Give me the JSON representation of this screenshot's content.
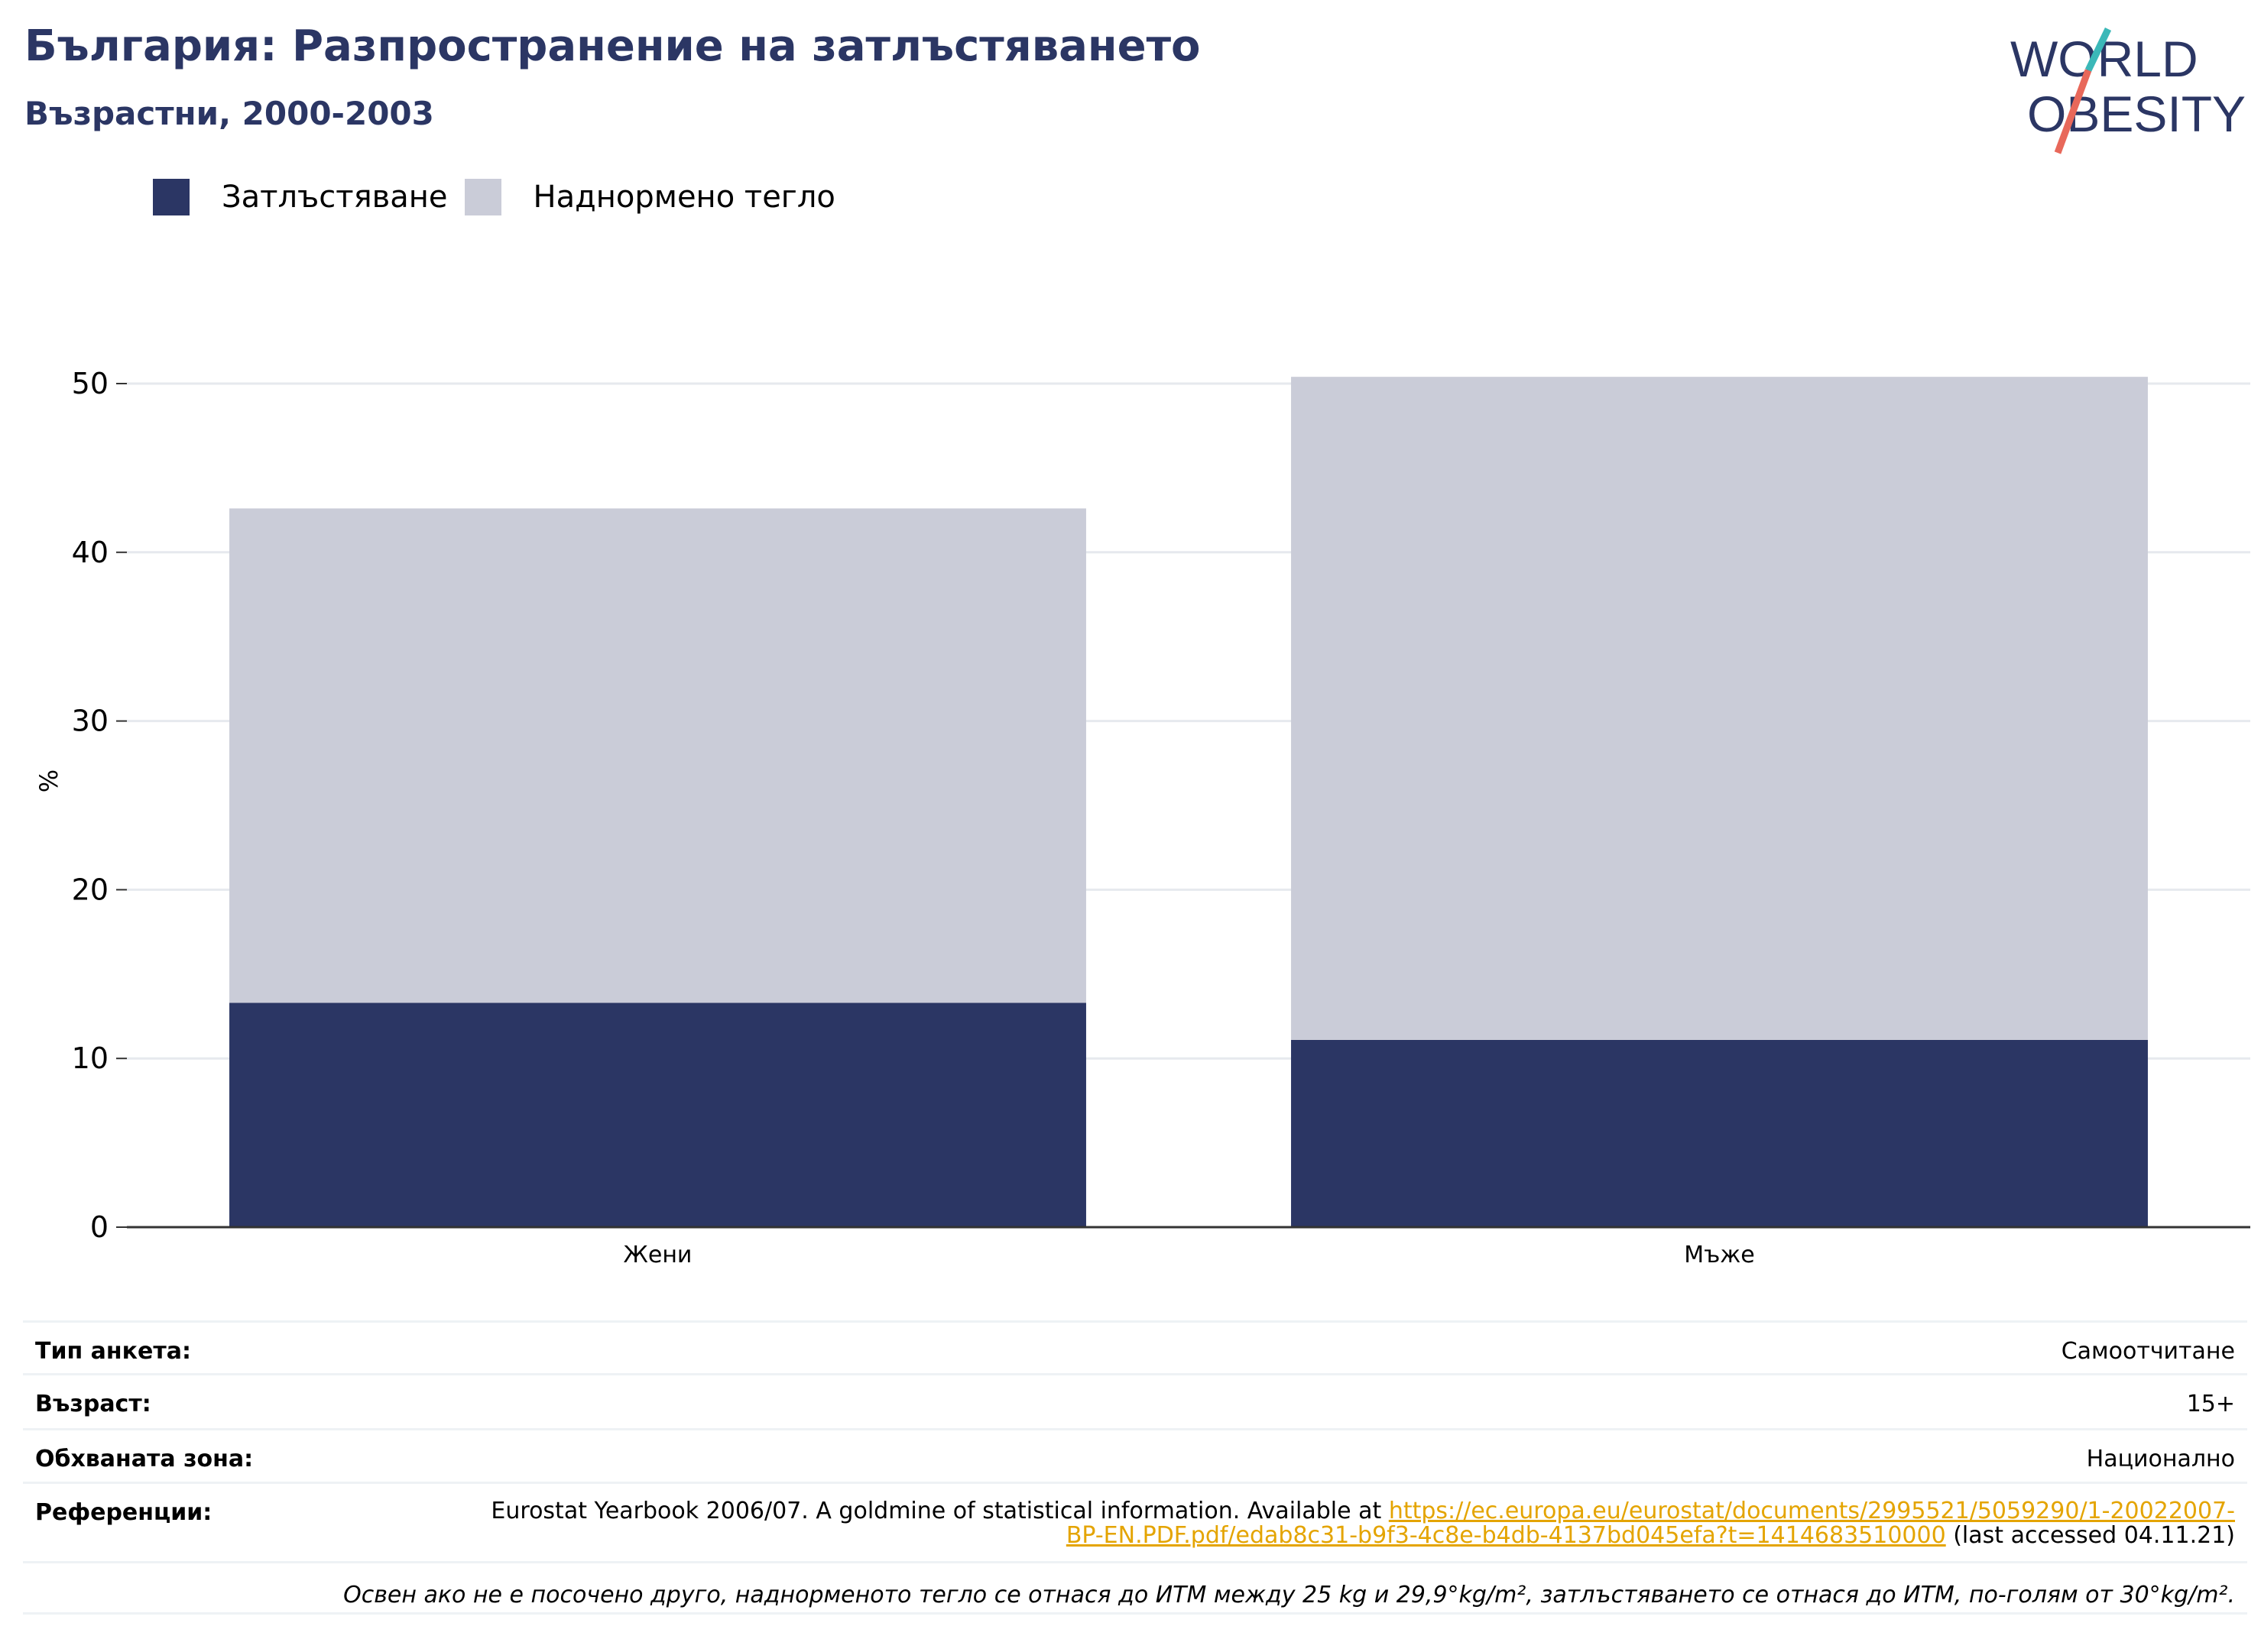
{
  "header": {
    "title": "България: Разпространение на затлъстяването",
    "subtitle": "Възрастни, 2000-2003"
  },
  "logo": {
    "line1": "WORLD",
    "line2": "OBESITY"
  },
  "colors": {
    "obesity": "#2b3664",
    "overweight": "#caccd8",
    "title": "#2b3664",
    "link": "#e4a400",
    "logo_red": "#e8685a",
    "logo_teal": "#3bb8b8"
  },
  "chart_data": {
    "type": "bar",
    "stacked": true,
    "categories": [
      "Жени",
      "Мъже"
    ],
    "series": [
      {
        "name": "Затлъстяване",
        "values": [
          13.3,
          11.1
        ]
      },
      {
        "name": "Наднормено тегло",
        "values": [
          29.3,
          39.3
        ]
      }
    ],
    "ylabel": "%",
    "ylim": [
      0,
      50
    ],
    "yticks": [
      0,
      10,
      20,
      30,
      40,
      50
    ],
    "grid": true,
    "legend_position": "top-left"
  },
  "info": {
    "survey_label": "Тип анкета:",
    "survey_value": "Самоотчитане",
    "age_label": "Възраст:",
    "age_value": "15+",
    "area_label": "Обхваната зона:",
    "area_value": "Национално",
    "ref_label": "Референции:",
    "ref_text": "Eurostat Yearbook 2006/07. A goldmine of statistical information. Available at ",
    "ref_link": "https://ec.europa.eu/eurostat/documents/2995521/5059290/1-20022007-BP-EN.PDF.pdf/edab8c31-b9f3-4c8e-b4db-4137bd045efa?t=1414683510000",
    "ref_after": " (last accessed 04.11.21)",
    "note": "Освен ако не е посочено друго, наднорменото тегло се отнася до ИТМ между 25 kg и 29,9°kg/m², затлъстяването се отнася до ИТМ, по-голям от 30°kg/m²."
  }
}
